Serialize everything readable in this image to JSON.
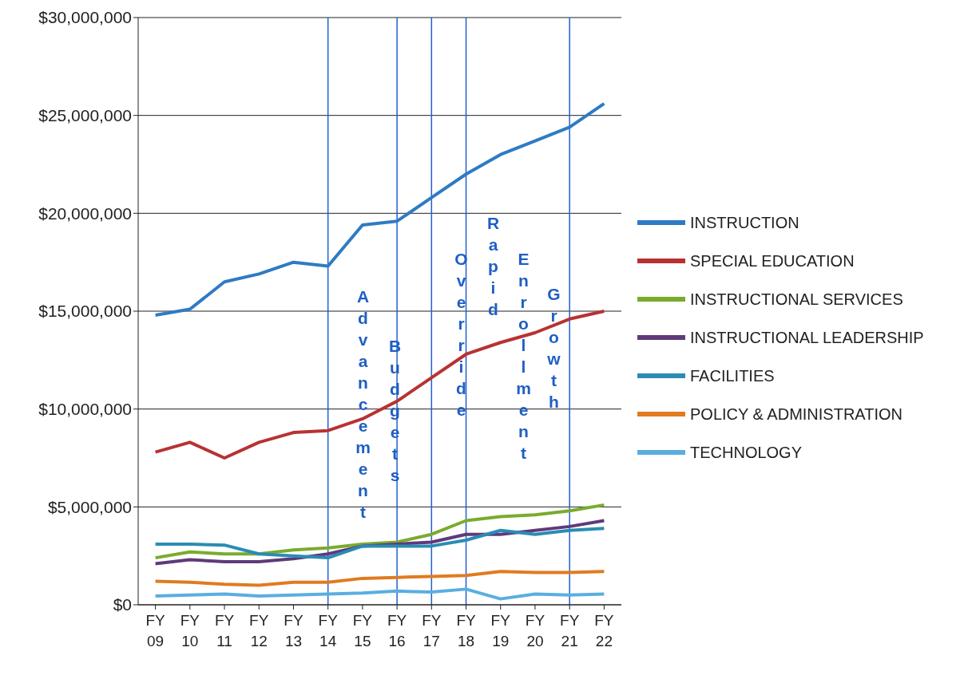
{
  "chart_data": {
    "type": "line",
    "categories": [
      "FY 09",
      "FY 10",
      "FY 11",
      "FY 12",
      "FY 13",
      "FY 14",
      "FY 15",
      "FY 16",
      "FY 17",
      "FY 18",
      "FY 19",
      "FY 20",
      "FY 21",
      "FY 22"
    ],
    "series": [
      {
        "name": "INSTRUCTION",
        "color": "#2e7bc4",
        "values": [
          14800000,
          15100000,
          16500000,
          16900000,
          17500000,
          17300000,
          19400000,
          19600000,
          20800000,
          22000000,
          23000000,
          23700000,
          24400000,
          25600000
        ]
      },
      {
        "name": "SPECIAL EDUCATION",
        "color": "#b83232",
        "values": [
          7800000,
          8300000,
          7500000,
          8300000,
          8800000,
          8900000,
          9500000,
          10400000,
          11600000,
          12800000,
          13400000,
          13900000,
          14600000,
          15000000
        ]
      },
      {
        "name": "INSTRUCTIONAL SERVICES",
        "color": "#7aab2e",
        "values": [
          2400000,
          2700000,
          2600000,
          2600000,
          2800000,
          2900000,
          3100000,
          3200000,
          3600000,
          4300000,
          4500000,
          4600000,
          4800000,
          5100000
        ]
      },
      {
        "name": "INSTRUCTIONAL LEADERSHIP",
        "color": "#5e3a7c",
        "values": [
          2100000,
          2300000,
          2200000,
          2200000,
          2350000,
          2600000,
          3000000,
          3100000,
          3200000,
          3600000,
          3600000,
          3800000,
          4000000,
          4300000
        ]
      },
      {
        "name": "FACILITIES",
        "color": "#2a8cb4",
        "values": [
          3100000,
          3100000,
          3050000,
          2600000,
          2500000,
          2400000,
          3000000,
          3000000,
          3000000,
          3300000,
          3800000,
          3600000,
          3800000,
          3900000
        ]
      },
      {
        "name": "POLICY & ADMINISTRATION",
        "color": "#e07b20",
        "values": [
          1200000,
          1150000,
          1050000,
          1000000,
          1150000,
          1150000,
          1350000,
          1400000,
          1450000,
          1500000,
          1700000,
          1650000,
          1650000,
          1700000
        ]
      },
      {
        "name": "TECHNOLOGY",
        "color": "#5aaee0",
        "values": [
          450000,
          500000,
          550000,
          450000,
          500000,
          550000,
          600000,
          700000,
          650000,
          800000,
          300000,
          550000,
          500000,
          550000
        ]
      }
    ],
    "ylim": [
      0,
      30000000
    ],
    "yticks": [
      {
        "value": 0,
        "label": "$0"
      },
      {
        "value": 5000000,
        "label": "$5,000,000"
      },
      {
        "value": 10000000,
        "label": "$10,000,000"
      },
      {
        "value": 15000000,
        "label": "$15,000,000"
      },
      {
        "value": 20000000,
        "label": "$20,000,000"
      },
      {
        "value": 25000000,
        "label": "$25,000,000"
      },
      {
        "value": 30000000,
        "label": "$30,000,000"
      }
    ],
    "grid": "y",
    "legend": "right",
    "marker": "none",
    "line_style": "solid",
    "ref_lines": [
      {
        "axis": "x",
        "value": "FY 14",
        "color": "#2060d0"
      },
      {
        "axis": "x",
        "value": "FY 16",
        "color": "#2060d0"
      },
      {
        "axis": "x",
        "value": "FY 17",
        "color": "#2060d0"
      },
      {
        "axis": "x",
        "value": "FY 18",
        "color": "#2060d0"
      },
      {
        "axis": "x",
        "value": "FY 21",
        "color": "#2060d0"
      }
    ],
    "annotations": [
      "Advancement",
      "Budgets",
      "Override",
      "Rapid",
      "Enrollment",
      "Growth"
    ]
  }
}
